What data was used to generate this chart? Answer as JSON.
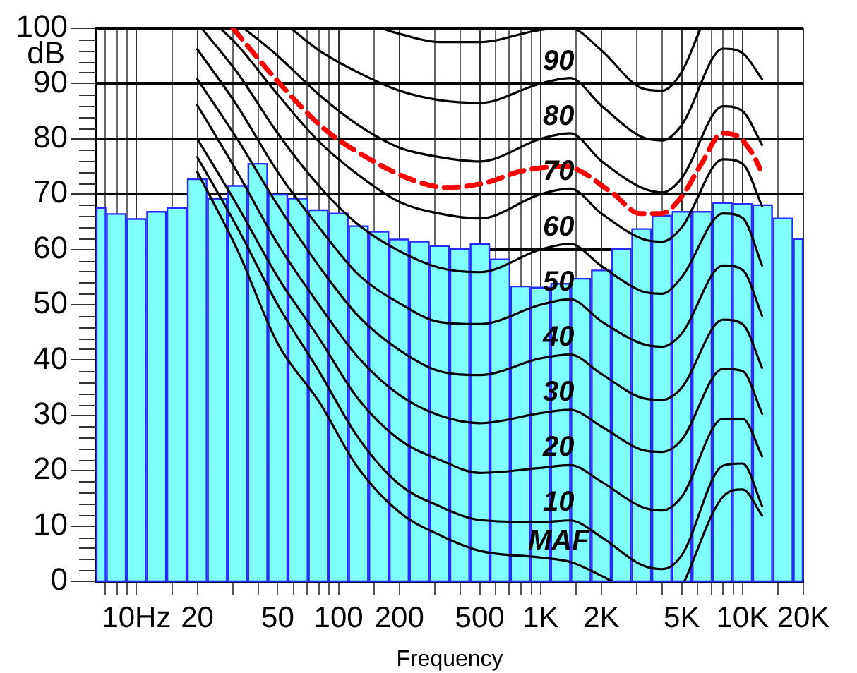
{
  "chart_data": {
    "type": "histogram",
    "xlabel": "Frequency",
    "ylabel": "dB",
    "log": "x",
    "grid": true,
    "legend": false,
    "marker": "none",
    "xlim": [
      6.3,
      20000
    ],
    "xticks": [
      {
        "value": 7,
        "label": null
      },
      {
        "value": 8,
        "label": null
      },
      {
        "value": 9,
        "label": null
      },
      {
        "value": 10,
        "label": "10Hz"
      },
      {
        "value": 15,
        "label": null
      },
      20,
      {
        "value": 30,
        "label": null
      },
      {
        "value": 40,
        "label": null
      },
      50,
      {
        "value": 60,
        "label": null
      },
      {
        "value": 70,
        "label": null
      },
      {
        "value": 80,
        "label": null
      },
      {
        "value": 90,
        "label": null
      },
      100,
      {
        "value": 150,
        "label": null
      },
      200,
      {
        "value": 300,
        "label": null
      },
      {
        "value": 400,
        "label": null
      },
      500,
      {
        "value": 600,
        "label": null
      },
      {
        "value": 700,
        "label": null
      },
      {
        "value": 800,
        "label": null
      },
      {
        "value": 900,
        "label": null
      },
      {
        "value": 1000,
        "label": "1K"
      },
      {
        "value": 1500,
        "label": null
      },
      {
        "value": 2000,
        "label": "2K"
      },
      {
        "value": 3000,
        "label": null
      },
      {
        "value": 4000,
        "label": null
      },
      {
        "value": 5000,
        "label": "5K"
      },
      {
        "value": 6000,
        "label": null
      },
      {
        "value": 7000,
        "label": null
      },
      {
        "value": 8000,
        "label": null
      },
      {
        "value": 9000,
        "label": null
      },
      {
        "value": 10000,
        "label": "10K"
      },
      {
        "value": 15000,
        "label": null
      },
      {
        "value": 20000,
        "label": "20K"
      }
    ],
    "ylim": [
      0,
      100
    ],
    "yticks": [
      0,
      {
        "value": 2,
        "label": null
      },
      {
        "value": 4,
        "label": null
      },
      {
        "value": 6,
        "label": null
      },
      {
        "value": 8,
        "label": null
      },
      10,
      {
        "value": 12,
        "label": null
      },
      {
        "value": 14,
        "label": null
      },
      {
        "value": 16,
        "label": null
      },
      {
        "value": 18,
        "label": null
      },
      20,
      {
        "value": 22,
        "label": null
      },
      {
        "value": 24,
        "label": null
      },
      {
        "value": 26,
        "label": null
      },
      {
        "value": 28,
        "label": null
      },
      30,
      {
        "value": 32,
        "label": null
      },
      {
        "value": 34,
        "label": null
      },
      {
        "value": 36,
        "label": null
      },
      {
        "value": 38,
        "label": null
      },
      40,
      {
        "value": 42,
        "label": null
      },
      {
        "value": 44,
        "label": null
      },
      {
        "value": 46,
        "label": null
      },
      {
        "value": 48,
        "label": null
      },
      50,
      {
        "value": 52,
        "label": null
      },
      {
        "value": 54,
        "label": null
      },
      {
        "value": 56,
        "label": null
      },
      {
        "value": 58,
        "label": null
      },
      60,
      {
        "value": 62,
        "label": null
      },
      {
        "value": 64,
        "label": null
      },
      {
        "value": 66,
        "label": null
      },
      {
        "value": 68,
        "label": null
      },
      70,
      {
        "value": 72,
        "label": null
      },
      {
        "value": 74,
        "label": null
      },
      {
        "value": 76,
        "label": null
      },
      {
        "value": 78,
        "label": null
      },
      80,
      {
        "value": 82,
        "label": null
      },
      {
        "value": 84,
        "label": null
      },
      {
        "value": 86,
        "label": null
      },
      {
        "value": 88,
        "label": null
      },
      90,
      {
        "value": 92,
        "label": null
      },
      {
        "value": 94,
        "label": null
      },
      {
        "value": 96,
        "label": null
      },
      {
        "value": 98,
        "label": null
      },
      100
    ],
    "color": "#80ffff",
    "bins": [
      6.3,
      7.08,
      8.91,
      11.2,
      14.1,
      17.8,
      22.4,
      28.2,
      35.5,
      44.7,
      56.2,
      70.8,
      89.1,
      112,
      141,
      178,
      224,
      282,
      355,
      447,
      562,
      708,
      891,
      1120,
      1410,
      1780,
      2240,
      2820,
      3550,
      4470,
      5620,
      7080,
      8910,
      11200,
      14100,
      17800,
      20000
    ],
    "values": [
      67.5,
      66.4,
      65.5,
      66.8,
      67.5,
      72.7,
      69.1,
      71.5,
      75.5,
      69.9,
      69.2,
      67.1,
      66.5,
      64.2,
      63.2,
      61.8,
      61.4,
      60.6,
      60.1,
      61.0,
      58.2,
      53.3,
      53.1,
      53.8,
      54.7,
      56.2,
      60.1,
      63.7,
      66.1,
      66.8,
      66.8,
      68.4,
      68.2,
      68.0,
      65.6,
      61.9
    ],
    "series": [
      {
        "type": "line",
        "color": "#000000",
        "x": [
          162,
          200,
          315,
          500,
          1000,
          1400,
          2000,
          3150,
          4000,
          5000,
          6200
        ],
        "values": [
          100,
          99,
          97.5,
          97.5,
          99.7,
          100,
          96,
          89.2,
          88.7,
          92.1,
          100
        ]
      },
      {
        "type": "line",
        "name": "90",
        "color": "#000000",
        "x": [
          58,
          80,
          125,
          200,
          315,
          500,
          1000,
          1400,
          2000,
          3150,
          4000,
          5000,
          8000,
          10000,
          12500
        ],
        "values": [
          100,
          96,
          92,
          88.7,
          87,
          86.5,
          90,
          91,
          86,
          80.4,
          79.7,
          82.5,
          96.3,
          95.5,
          90.8
        ]
      },
      {
        "type": "line",
        "name": "80",
        "color": "#000000",
        "x": [
          34,
          50,
          80,
          125,
          200,
          315,
          500,
          1000,
          1400,
          2000,
          3150,
          4000,
          5000,
          8000,
          10000,
          12500
        ],
        "values": [
          100,
          95,
          88,
          82.5,
          78.4,
          76.7,
          75.9,
          80,
          81,
          76,
          71.2,
          70.3,
          72.9,
          85.9,
          85,
          78.9
        ]
      },
      {
        "type": "line",
        "name": "70",
        "color": "#000000",
        "x": [
          26,
          31.5,
          50,
          80,
          125,
          200,
          315,
          500,
          1000,
          1400,
          2000,
          3150,
          4000,
          5000,
          8000,
          10000,
          12500
        ],
        "values": [
          100,
          97,
          88,
          79.5,
          73.5,
          68.6,
          66.5,
          65.6,
          70,
          71,
          66.5,
          62,
          61.4,
          64,
          76.3,
          75.5,
          67.8
        ]
      },
      {
        "type": "line",
        "name": "60",
        "color": "#000000",
        "x": [
          21,
          31.5,
          50,
          80,
          125,
          200,
          315,
          500,
          1000,
          1400,
          2000,
          3150,
          4000,
          5000,
          8000,
          10000,
          12500
        ],
        "values": [
          100,
          92,
          81,
          71.5,
          64.5,
          59.7,
          56.7,
          55.9,
          60,
          61,
          57,
          52.5,
          52,
          55,
          66.5,
          65.7,
          57.1
        ]
      },
      {
        "type": "line",
        "name": "50",
        "color": "#000000",
        "x": [
          20,
          31.5,
          50,
          80,
          125,
          200,
          315,
          500,
          1000,
          1400,
          2000,
          3150,
          4000,
          5000,
          8000,
          10000,
          12500
        ],
        "values": [
          96.2,
          86,
          74,
          64,
          55.5,
          50.3,
          46.9,
          46.5,
          50,
          51,
          47,
          43,
          42.4,
          44.8,
          57.1,
          56.3,
          48
        ]
      },
      {
        "type": "line",
        "name": "40",
        "color": "#000000",
        "x": [
          20,
          31.5,
          50,
          80,
          125,
          200,
          315,
          500,
          1000,
          1400,
          2000,
          3150,
          4000,
          5000,
          8000,
          10000,
          12500
        ],
        "values": [
          90.8,
          80,
          68,
          57,
          48,
          41.8,
          38,
          37.3,
          40.3,
          41,
          37.5,
          33.2,
          32.8,
          35,
          47.3,
          46.5,
          38.6
        ]
      },
      {
        "type": "line",
        "name": "30",
        "color": "#000000",
        "x": [
          20,
          31.5,
          50,
          80,
          125,
          200,
          315,
          500,
          1000,
          1400,
          2000,
          3150,
          4000,
          5000,
          8000,
          10000,
          12500
        ],
        "values": [
          86.1,
          74,
          61,
          50,
          40.5,
          33.7,
          30,
          28.6,
          30.4,
          31,
          28,
          23.8,
          23.4,
          25.6,
          38.4,
          38,
          30.3
        ]
      },
      {
        "type": "line",
        "name": "20",
        "color": "#000000",
        "x": [
          20,
          31.5,
          50,
          80,
          125,
          200,
          315,
          500,
          1000,
          1400,
          2000,
          3150,
          4000,
          5000,
          8000,
          10000,
          12500
        ],
        "values": [
          80,
          68,
          55,
          44,
          33,
          25.6,
          22,
          19.6,
          20.5,
          21,
          18,
          13.5,
          12.8,
          15.3,
          29.4,
          29.4,
          22.6
        ]
      },
      {
        "type": "line",
        "name": "10",
        "color": "#000000",
        "x": [
          20,
          31.5,
          50,
          80,
          125,
          200,
          315,
          500,
          1000,
          1400,
          2000,
          3150,
          4000,
          5000,
          8000,
          10000,
          12500
        ],
        "values": [
          76.7,
          64,
          50,
          38,
          26,
          17.5,
          13.6,
          11.1,
          10.7,
          11,
          8,
          3,
          2.2,
          4.7,
          20.9,
          21.3,
          13.6
        ]
      },
      {
        "type": "line",
        "name": "MAF",
        "color": "#000000",
        "x": [
          20,
          31.5,
          50,
          80,
          125,
          200,
          315,
          500,
          1000,
          1400,
          2000,
          2250,
          3150,
          5160,
          8000,
          10000,
          12500
        ],
        "values": [
          74,
          60,
          43,
          32.5,
          20.5,
          12.5,
          8.4,
          5.5,
          4.3,
          3.5,
          1,
          0,
          null,
          0,
          15.3,
          16.6,
          11.9
        ]
      },
      {
        "type": "line",
        "color": "#ff0000",
        "line_style": "dashed",
        "x": [
          30,
          50,
          85,
          140,
          235,
          344,
          528,
          811,
          1315,
          2250,
          3105,
          3953,
          4980,
          6240,
          7940,
          9330,
          11250,
          12200
        ],
        "values": [
          100,
          90.4,
          81.8,
          76.5,
          72.5,
          71.2,
          72,
          74.2,
          75,
          70.3,
          66.5,
          66.5,
          69.5,
          75.4,
          81,
          80.6,
          77.2,
          74.6
        ]
      }
    ]
  }
}
